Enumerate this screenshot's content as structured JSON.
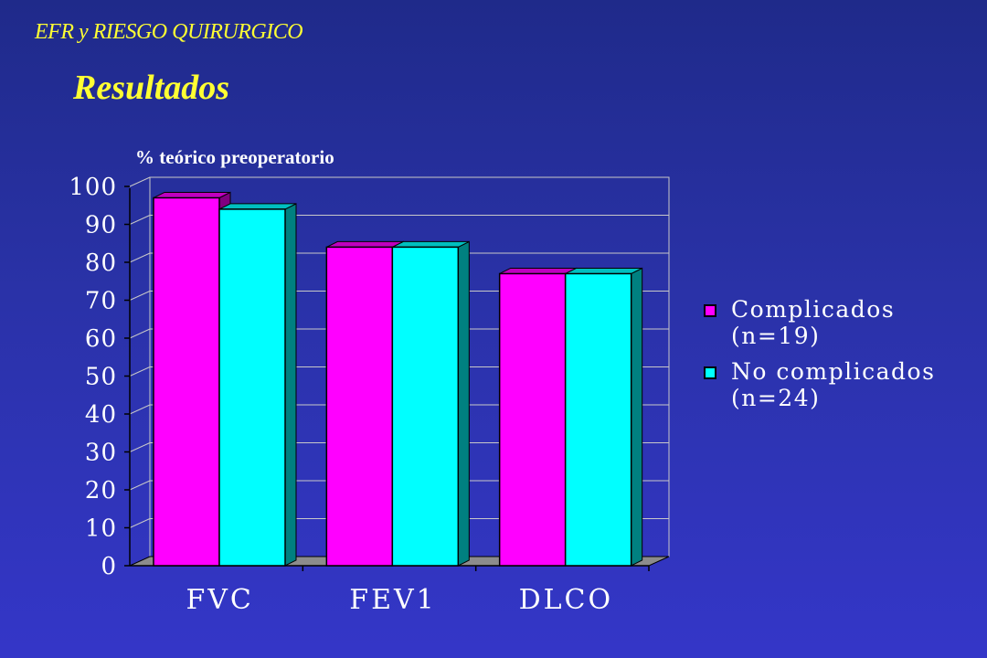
{
  "header": {
    "supertitle": "EFR y RIESGO QUIRURGICO",
    "title": "Resultados"
  },
  "colors": {
    "series_complicados": "#ff00ff",
    "series_no_complicados": "#00ffff",
    "title": "#ffff33"
  },
  "chart_data": {
    "type": "bar",
    "ylabel": "% teórico preoperatorio",
    "categories": [
      "FVC",
      "FEV1",
      "DLCO"
    ],
    "series": [
      {
        "name": "Complicados\n(n=19)",
        "values": [
          97,
          84,
          77
        ]
      },
      {
        "name": "No complicados\n(n=24)",
        "values": [
          94,
          84,
          77
        ]
      }
    ],
    "ylim": [
      0,
      100
    ],
    "yticks": [
      0,
      10,
      20,
      30,
      40,
      50,
      60,
      70,
      80,
      90,
      100
    ],
    "grid": true,
    "legend_position": "right",
    "three_d": true
  }
}
